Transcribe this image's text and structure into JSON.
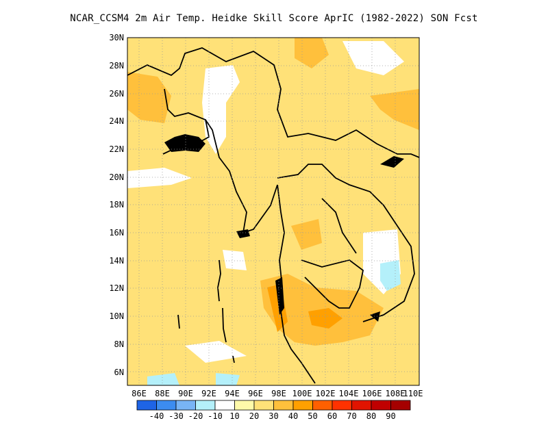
{
  "title": "NCAR_CCSM4  2m Air Temp. Heidke Skill Score AprIC (1982-2022) SON Fcst",
  "map": {
    "lat_labels": [
      "30N",
      "28N",
      "26N",
      "24N",
      "22N",
      "20N",
      "18N",
      "16N",
      "14N",
      "12N",
      "10N",
      "8N",
      "6N"
    ],
    "lon_labels": [
      "86E",
      "88E",
      "90E",
      "92E",
      "94E",
      "96E",
      "98E",
      "100E",
      "102E",
      "104E",
      "106E",
      "108E",
      "110E"
    ],
    "lon_range": [
      85,
      110
    ],
    "lat_range": [
      5,
      30
    ],
    "grid": "dotted"
  },
  "colorbar": {
    "labels": [
      "-40",
      "-30",
      "-20",
      "-10",
      "10",
      "20",
      "30",
      "40",
      "50",
      "60",
      "70",
      "80",
      "90"
    ],
    "colors": [
      "#1e64e6",
      "#3c8cf0",
      "#78b4f5",
      "#b4f0fa",
      "#ffffff",
      "#fffaaa",
      "#ffe178",
      "#ffc03c",
      "#ffa000",
      "#ff6000",
      "#ff3200",
      "#e11400",
      "#c00000",
      "#a50000"
    ]
  }
}
